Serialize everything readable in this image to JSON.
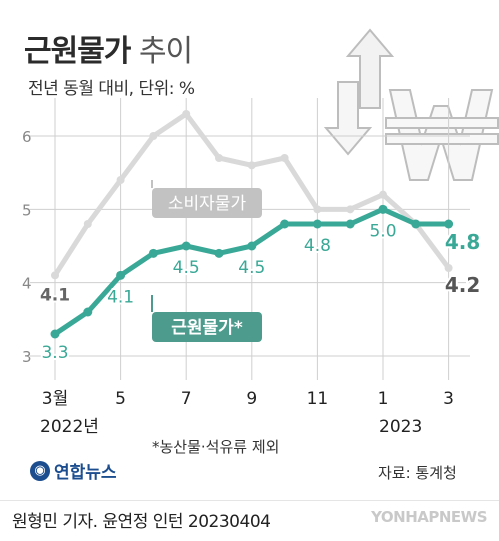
{
  "header": {
    "title_main": "근원물가",
    "title_sub": "추이",
    "subtitle": "전년 동월 대비, 단위: %"
  },
  "note": "*농산물·석유류 제외",
  "source": "자료: 통계청",
  "logo_text": "연합뉴스",
  "footer": {
    "credit": "원형민 기자. 윤연정 인턴 20230404",
    "watermark": "YONHAPNEWS"
  },
  "colors": {
    "core_series": "#3aa896",
    "cpi_series": "#d9d9d9",
    "core_label_bg": "#4c9b8c",
    "cpi_label_bg": "#c2c2c2",
    "grid": "#cfcfcf"
  },
  "chart_data": {
    "type": "line",
    "x": [
      "2022-03",
      "2022-04",
      "2022-05",
      "2022-06",
      "2022-07",
      "2022-08",
      "2022-09",
      "2022-10",
      "2022-11",
      "2022-12",
      "2023-01",
      "2023-02",
      "2023-03"
    ],
    "x_tick_labels": [
      "3월",
      "5",
      "7",
      "9",
      "11",
      "1",
      "3"
    ],
    "x_tick_indices": [
      0,
      2,
      4,
      6,
      8,
      10,
      12
    ],
    "year_labels": [
      "2022년",
      "2023"
    ],
    "y_ticks": [
      "3",
      "4",
      "5",
      "6"
    ],
    "ylim": [
      3,
      6.4
    ],
    "grid": true,
    "series": [
      {
        "name": "소비자물가",
        "values": [
          4.1,
          4.8,
          5.4,
          6.0,
          6.3,
          5.7,
          5.6,
          5.7,
          5.0,
          5.0,
          5.2,
          4.8,
          4.2
        ],
        "labels": {
          "first": "4.1",
          "last": "4.2"
        }
      },
      {
        "name": "근원물가*",
        "values": [
          3.3,
          3.6,
          4.1,
          4.4,
          4.5,
          4.4,
          4.5,
          4.8,
          4.8,
          4.8,
          5.0,
          4.8,
          4.8
        ],
        "labels": {
          "0": "3.3",
          "2": "4.1",
          "4": "4.5",
          "6": "4.5",
          "8": "4.8",
          "10": "5.0",
          "12": "4.8"
        }
      }
    ]
  }
}
